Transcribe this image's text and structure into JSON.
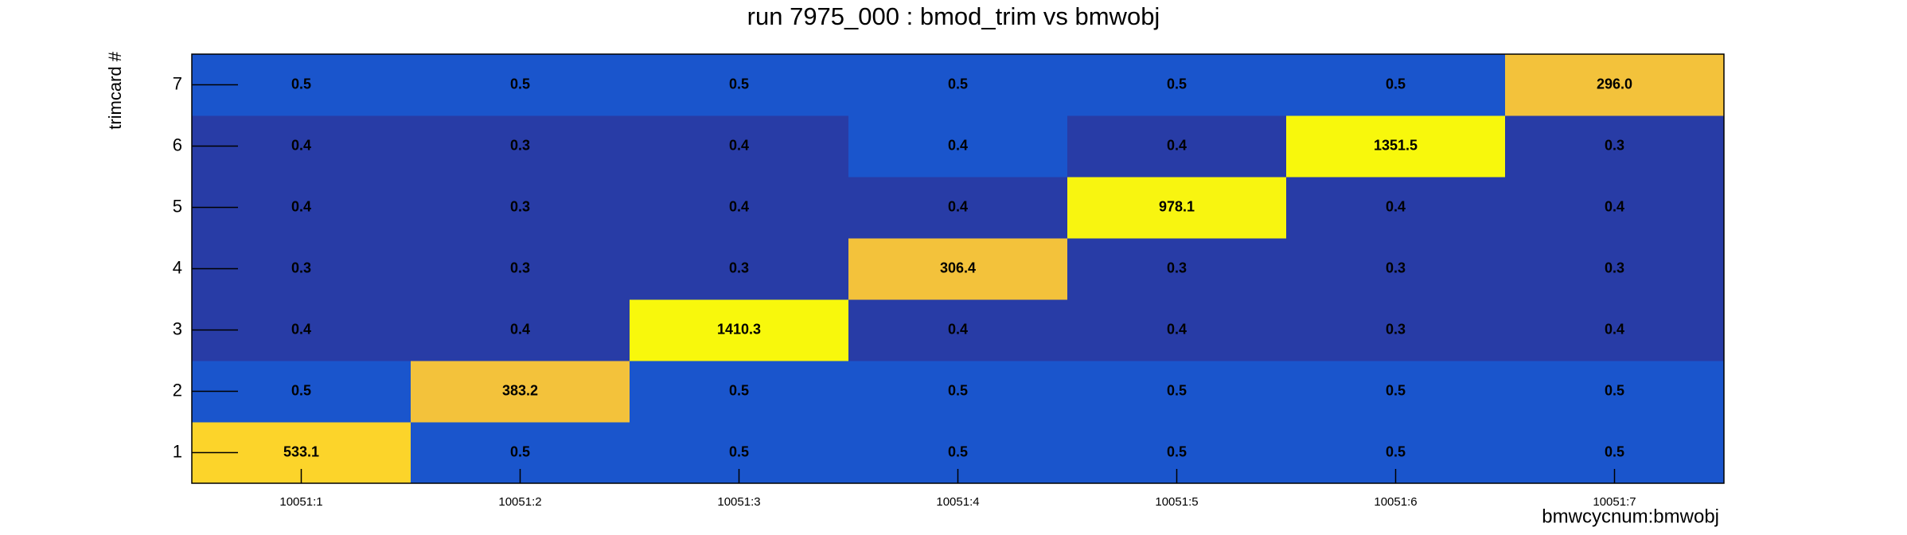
{
  "chart_data": {
    "type": "heatmap",
    "title": "run 7975_000 : bmod_trim vs bmwobj",
    "x_label": "bmwcycnum:bmwobj",
    "y_label": "trimcard #",
    "x_categories": [
      "10051:1",
      "10051:2",
      "10051:3",
      "10051:4",
      "10051:5",
      "10051:6",
      "10051:7"
    ],
    "y_categories": [
      "1",
      "2",
      "3",
      "4",
      "5",
      "6",
      "7"
    ],
    "values": [
      [
        533.1,
        0.5,
        0.5,
        0.5,
        0.5,
        0.5,
        0.5
      ],
      [
        0.5,
        383.2,
        0.5,
        0.5,
        0.5,
        0.5,
        0.5
      ],
      [
        0.4,
        0.4,
        1410.3,
        0.4,
        0.4,
        0.3,
        0.4
      ],
      [
        0.3,
        0.3,
        0.3,
        306.4,
        0.3,
        0.3,
        0.3
      ],
      [
        0.4,
        0.3,
        0.4,
        0.4,
        978.1,
        0.4,
        0.4
      ],
      [
        0.4,
        0.3,
        0.4,
        0.4,
        0.4,
        1351.5,
        0.3
      ],
      [
        0.5,
        0.5,
        0.5,
        0.5,
        0.5,
        0.5,
        296
      ]
    ],
    "value_labels": [
      [
        "533.1",
        "0.5",
        "0.5",
        "0.5",
        "0.5",
        "0.5",
        "0.5"
      ],
      [
        "0.5",
        "383.2",
        "0.5",
        "0.5",
        "0.5",
        "0.5",
        "0.5"
      ],
      [
        "0.4",
        "0.4",
        "1410.3",
        "0.4",
        "0.4",
        "0.3",
        "0.4"
      ],
      [
        "0.3",
        "0.3",
        "0.3",
        "306.4",
        "0.3",
        "0.3",
        "0.3"
      ],
      [
        "0.4",
        "0.3",
        "0.4",
        "0.4",
        "978.1",
        "0.4",
        "0.4"
      ],
      [
        "0.4",
        "0.3",
        "0.4",
        "0.4",
        "0.4",
        "1351.5",
        "0.3"
      ],
      [
        "0.5",
        "0.5",
        "0.5",
        "0.5",
        "0.5",
        "0.5",
        "296.0"
      ]
    ],
    "colors": [
      [
        "#fcd42a",
        "#1a55cc",
        "#1a55cc",
        "#1a55cc",
        "#1a55cc",
        "#1a55cc",
        "#1a55cc"
      ],
      [
        "#1a55cc",
        "#f3c23b",
        "#1a55cc",
        "#1a55cc",
        "#1a55cc",
        "#1a55cc",
        "#1a55cc"
      ],
      [
        "#283ca6",
        "#283ca6",
        "#f8f80c",
        "#283ca6",
        "#283ca6",
        "#283ca6",
        "#283ca6"
      ],
      [
        "#283ca6",
        "#283ca6",
        "#283ca6",
        "#f3c23b",
        "#283ca6",
        "#283ca6",
        "#283ca6"
      ],
      [
        "#283ca6",
        "#283ca6",
        "#283ca6",
        "#283ca6",
        "#f8f510",
        "#283ca6",
        "#283ca6"
      ],
      [
        "#283ca6",
        "#283ca6",
        "#283ca6",
        "#1a55cc",
        "#283ca6",
        "#f8f80c",
        "#283ca6"
      ],
      [
        "#1a55cc",
        "#1a55cc",
        "#1a55cc",
        "#1a55cc",
        "#1a55cc",
        "#1a55cc",
        "#f3c23b"
      ]
    ]
  }
}
